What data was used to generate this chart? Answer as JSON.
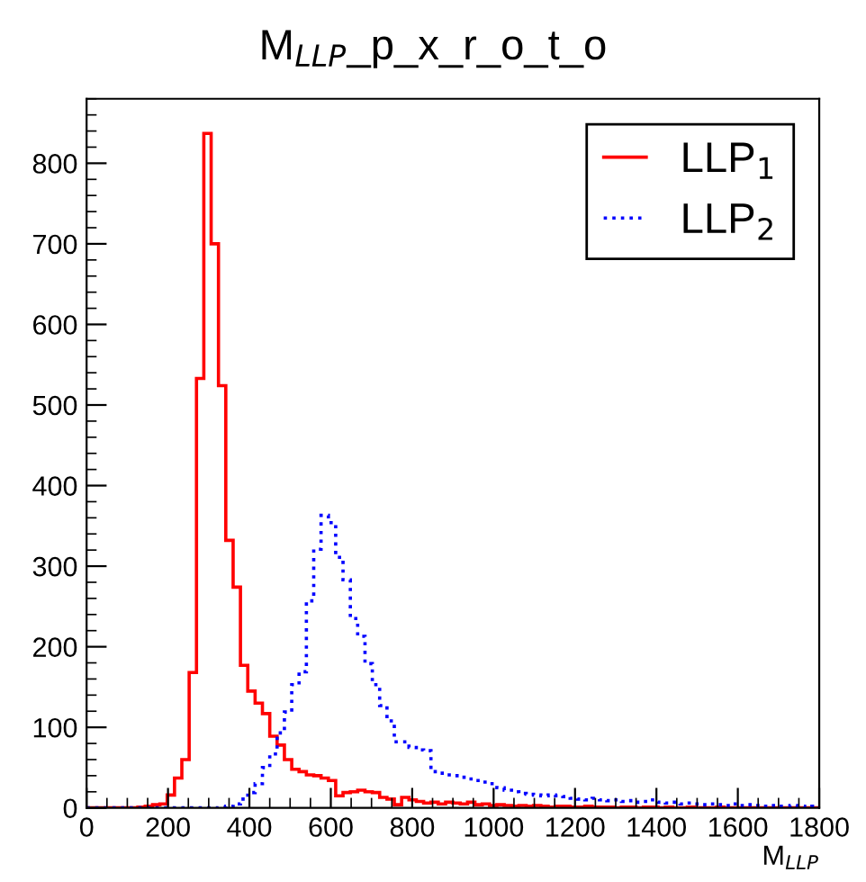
{
  "chart_data": {
    "type": "histogram",
    "title": "M$_{LLP}$_p_x_r_o_t_o",
    "xlabel": "M$_{LLP}$",
    "bins": [
      0,
      18,
      36,
      54,
      72,
      90,
      108,
      126,
      144,
      162,
      180,
      198,
      216,
      234,
      252,
      270,
      288,
      306,
      324,
      342,
      360,
      378,
      396,
      414,
      432,
      450,
      468,
      486,
      504,
      522,
      540,
      558,
      576,
      594,
      612,
      630,
      648,
      666,
      684,
      702,
      720,
      738,
      756,
      774,
      792,
      810,
      828,
      846,
      864,
      882,
      900,
      918,
      936,
      954,
      972,
      990,
      1008,
      1026,
      1044,
      1062,
      1080,
      1098,
      1116,
      1134,
      1152,
      1170,
      1188,
      1206,
      1224,
      1242,
      1260,
      1278,
      1296,
      1314,
      1332,
      1350,
      1368,
      1386,
      1404,
      1422,
      1440,
      1458,
      1476,
      1494,
      1512,
      1530,
      1548,
      1566,
      1584,
      1602,
      1620,
      1638,
      1656,
      1674,
      1692,
      1710,
      1728,
      1746,
      1764,
      1782,
      1800
    ],
    "series": [
      {
        "name": "LLP$_{1}$",
        "color": "#ff0000",
        "line_style": "solid",
        "values": [
          0,
          0,
          0,
          0,
          0,
          0,
          0,
          1,
          2,
          4,
          5,
          16,
          37,
          60,
          168,
          533,
          837,
          700,
          524,
          332,
          274,
          177,
          145,
          130,
          117,
          89,
          78,
          60,
          48,
          45,
          41,
          40,
          37,
          34,
          15,
          19,
          20,
          22,
          20,
          19,
          13,
          11,
          4,
          13,
          10,
          8,
          6,
          7,
          5,
          7,
          6,
          5,
          7,
          4,
          5,
          3,
          4,
          3,
          2,
          3,
          2,
          3,
          2,
          1,
          2,
          2,
          1,
          1,
          2,
          1,
          1,
          1,
          0,
          1,
          1,
          0,
          1,
          1,
          0,
          1,
          0,
          0,
          1,
          0,
          0,
          0,
          1,
          0,
          0,
          0,
          0,
          0,
          0,
          0,
          0,
          0,
          0,
          0,
          0,
          0
        ]
      },
      {
        "name": "LLP$_{2}$",
        "color": "#0000ff",
        "line_style": "dotted",
        "values": [
          0,
          0,
          0,
          0,
          0,
          0,
          0,
          0,
          0,
          0,
          0,
          0,
          0,
          0,
          0,
          0,
          0,
          0,
          1,
          2,
          5,
          11,
          19,
          30,
          50,
          67,
          93,
          119,
          153,
          169,
          257,
          321,
          363,
          354,
          311,
          283,
          235,
          213,
          179,
          153,
          127,
          108,
          82,
          82,
          75,
          72,
          71,
          45,
          43,
          41,
          40,
          38,
          36,
          34,
          32,
          30,
          25,
          22,
          20,
          18,
          17,
          16,
          15,
          16,
          15,
          14,
          12,
          11,
          10,
          12,
          10,
          9,
          10,
          8,
          9,
          7,
          8,
          10,
          7,
          6,
          7,
          5,
          6,
          5,
          4,
          5,
          4,
          3,
          5,
          3,
          4,
          3,
          2,
          3,
          2,
          2,
          3,
          2,
          1,
          2
        ]
      }
    ],
    "xlim": [
      0,
      1800
    ],
    "xticks": [
      0,
      200,
      400,
      600,
      800,
      1000,
      1200,
      1400,
      1600,
      1800
    ],
    "ylim": [
      0,
      880
    ],
    "yticks": [
      0,
      100,
      200,
      300,
      400,
      500,
      600,
      700,
      800
    ],
    "grid": false,
    "legend": "top right"
  }
}
